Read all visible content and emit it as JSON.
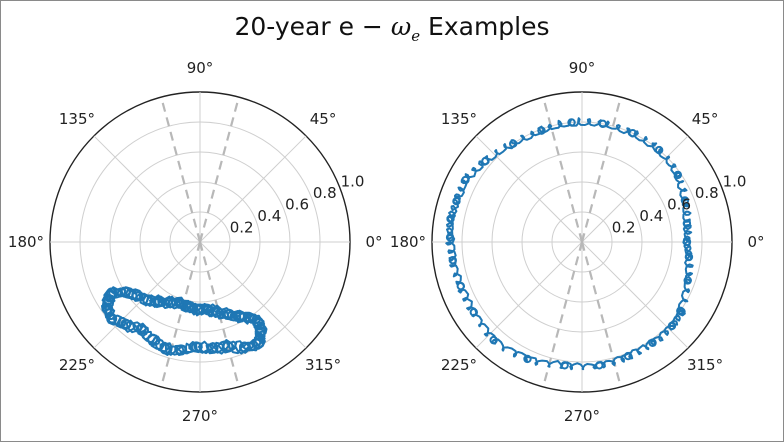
{
  "title": {
    "prefix": "20-year e − ",
    "omega": "ω",
    "subscript": "e",
    "suffix": " Examples"
  },
  "chart_data": [
    {
      "type": "scatter",
      "projection": "polar",
      "theta_unit": "degrees",
      "theta_ticks": [
        "0°",
        "45°",
        "90°",
        "135°",
        "180°",
        "225°",
        "270°",
        "315°"
      ],
      "r_ticks": [
        "0.2",
        "0.4",
        "0.6",
        "0.8",
        "1.0"
      ],
      "rlim": [
        0,
        1.0
      ],
      "grid": true,
      "reference_lines_deg": [
        75,
        105,
        255,
        285
      ],
      "series_color": "#1f77b4",
      "series": [
        {
          "trajectory": [
            [
              210,
              0.68
            ],
            [
              214,
              0.6
            ],
            [
              220,
              0.55
            ],
            [
              228,
              0.52
            ],
            [
              236,
              0.48
            ],
            [
              244,
              0.45
            ],
            [
              252,
              0.43
            ],
            [
              260,
              0.44
            ],
            [
              268,
              0.45
            ],
            [
              276,
              0.45
            ],
            [
              284,
              0.48
            ],
            [
              292,
              0.52
            ],
            [
              298,
              0.56
            ],
            [
              303,
              0.6
            ],
            [
              306,
              0.66
            ],
            [
              304,
              0.72
            ],
            [
              300,
              0.78
            ],
            [
              293,
              0.76
            ],
            [
              285,
              0.72
            ],
            [
              277,
              0.71
            ],
            [
              268,
              0.7
            ],
            [
              260,
              0.73
            ],
            [
              252,
              0.75
            ],
            [
              244,
              0.72
            ],
            [
              236,
              0.7
            ],
            [
              228,
              0.74
            ],
            [
              221,
              0.78
            ],
            [
              216,
              0.76
            ],
            [
              212,
              0.72
            ],
            [
              210,
              0.68
            ]
          ]
        }
      ]
    },
    {
      "type": "scatter",
      "projection": "polar",
      "theta_unit": "degrees",
      "theta_ticks": [
        "0°",
        "45°",
        "90°",
        "135°",
        "180°",
        "225°",
        "270°",
        "315°"
      ],
      "r_ticks": [
        "0.2",
        "0.4",
        "0.6",
        "0.8",
        "1.0"
      ],
      "rlim": [
        0,
        1.0
      ],
      "grid": true,
      "reference_lines_deg": [
        75,
        105,
        255,
        285
      ],
      "series_color": "#1f77b4",
      "series": [
        {
          "trajectory": [
            [
              -35,
              0.8
            ],
            [
              -20,
              0.75
            ],
            [
              -8,
              0.72
            ],
            [
              0,
              0.7
            ],
            [
              10,
              0.71
            ],
            [
              22,
              0.74
            ],
            [
              35,
              0.78
            ],
            [
              50,
              0.8
            ],
            [
              65,
              0.8
            ],
            [
              80,
              0.8
            ],
            [
              95,
              0.8
            ],
            [
              110,
              0.79
            ],
            [
              125,
              0.8
            ],
            [
              140,
              0.84
            ],
            [
              152,
              0.88
            ],
            [
              162,
              0.88
            ],
            [
              170,
              0.89
            ],
            [
              178,
              0.88
            ],
            [
              188,
              0.87
            ],
            [
              200,
              0.86
            ],
            [
              213,
              0.86
            ],
            [
              228,
              0.88
            ],
            [
              245,
              0.86
            ],
            [
              262,
              0.83
            ],
            [
              278,
              0.83
            ],
            [
              292,
              0.82
            ],
            [
              305,
              0.82
            ],
            [
              317,
              0.82
            ],
            [
              325,
              0.81
            ]
          ]
        }
      ]
    }
  ]
}
